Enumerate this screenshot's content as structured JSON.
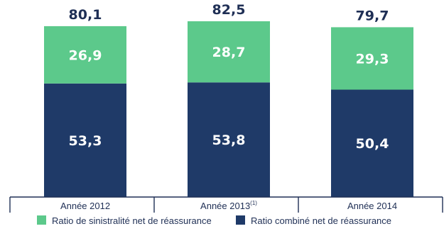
{
  "chart_data": {
    "type": "bar",
    "stacked": true,
    "categories": [
      "Année 2012",
      "Année 2013",
      "Année 2014"
    ],
    "category_superscripts": [
      "",
      "(1)",
      ""
    ],
    "series": [
      {
        "name": "Ratio combiné net de réassurance",
        "values": [
          53.3,
          53.8,
          50.4
        ],
        "color": "#1f3a68"
      },
      {
        "name": "Ratio de sinistralité net de réassurance",
        "values": [
          26.9,
          28.7,
          29.3
        ],
        "color": "#5cc98b"
      }
    ],
    "value_labels": [
      [
        "53,3",
        "53,8",
        "50,4"
      ],
      [
        "26,9",
        "28,7",
        "29,3"
      ]
    ],
    "totals": [
      80.1,
      82.5,
      79.7
    ],
    "total_labels": [
      "80,1",
      "82,5",
      "79,7"
    ],
    "title": "",
    "xlabel": "",
    "ylabel": "",
    "ylim": [
      0,
      82.5
    ],
    "grid": false,
    "legend_position": "bottom",
    "legend": [
      {
        "name": "Ratio de sinistralité net de réassurance",
        "color": "#5cc98b"
      },
      {
        "name": "Ratio combiné net de réassurance",
        "color": "#1f3a68"
      }
    ],
    "axis_color": "#1f2f55"
  }
}
